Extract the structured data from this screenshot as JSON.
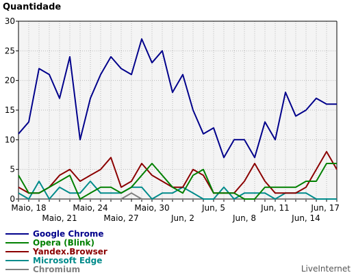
{
  "chart_data": {
    "type": "line",
    "ylabel": "Quantidade",
    "ylim": [
      0,
      30
    ],
    "yticks": [
      0,
      5,
      10,
      15,
      20,
      25,
      30
    ],
    "grid": true,
    "categories": [
      "Maio, 17",
      "Maio, 18",
      "Maio, 19",
      "Maio, 20",
      "Maio, 21",
      "Maio, 22",
      "Maio, 23",
      "Maio, 24",
      "Maio, 25",
      "Maio, 26",
      "Maio, 27",
      "Maio, 28",
      "Maio, 29",
      "Maio, 30",
      "Maio, 31",
      "Jun, 1",
      "Jun, 2",
      "Jun, 3",
      "Jun, 4",
      "Jun, 5",
      "Jun, 6",
      "Jun, 7",
      "Jun, 8",
      "Jun, 9",
      "Jun, 10",
      "Jun, 11",
      "Jun, 12",
      "Jun, 13",
      "Jun, 14",
      "Jun, 15",
      "Jun, 16",
      "Jun, 17"
    ],
    "xtick_labels": [
      {
        "label": "Maio, 18",
        "index": 1,
        "row": 0
      },
      {
        "label": "Maio, 21",
        "index": 4,
        "row": 1
      },
      {
        "label": "Maio, 24",
        "index": 7,
        "row": 0
      },
      {
        "label": "Maio, 27",
        "index": 10,
        "row": 1
      },
      {
        "label": "Maio, 30",
        "index": 13,
        "row": 0
      },
      {
        "label": "Jun, 2",
        "index": 16,
        "row": 1
      },
      {
        "label": "Jun, 5",
        "index": 19,
        "row": 0
      },
      {
        "label": "Jun, 8",
        "index": 22,
        "row": 1
      },
      {
        "label": "Jun, 11",
        "index": 25,
        "row": 0
      },
      {
        "label": "Jun, 14",
        "index": 28,
        "row": 1
      },
      {
        "label": "Jun, 17",
        "index": 31,
        "row": 0
      }
    ],
    "series": [
      {
        "name": "Google Chrome",
        "color": "#00008b",
        "values": [
          11,
          13,
          22,
          21,
          17,
          24,
          10,
          17,
          21,
          24,
          22,
          21,
          27,
          23,
          25,
          18,
          21,
          15,
          11,
          12,
          7,
          10,
          10,
          7,
          13,
          10,
          18,
          14,
          15,
          17,
          16,
          16
        ]
      },
      {
        "name": "Opera (Blink)",
        "color": "#008000",
        "values": [
          4,
          1,
          1,
          2,
          3,
          4,
          0,
          1,
          2,
          2,
          1,
          2,
          4,
          6,
          4,
          2,
          1,
          4,
          5,
          1,
          1,
          1,
          0,
          0,
          2,
          2,
          2,
          2,
          3,
          3,
          6,
          6
        ]
      },
      {
        "name": "Yandex.Browser",
        "color": "#8b0000",
        "values": [
          2,
          1,
          1,
          2,
          4,
          5,
          3,
          4,
          5,
          7,
          2,
          3,
          6,
          4,
          3,
          2,
          2,
          5,
          4,
          1,
          1,
          1,
          3,
          6,
          3,
          1,
          1,
          1,
          2,
          5,
          8,
          5
        ]
      },
      {
        "name": "Microsoft Edge",
        "color": "#008b8b",
        "values": [
          1,
          0,
          3,
          0,
          2,
          1,
          1,
          3,
          1,
          1,
          1,
          2,
          2,
          0,
          1,
          1,
          2,
          1,
          0,
          0,
          2,
          0,
          1,
          1,
          1,
          0,
          1,
          1,
          1,
          0,
          0,
          0
        ]
      },
      {
        "name": "Chromium",
        "color": "#808080",
        "values": [
          0,
          0,
          0,
          0,
          0,
          0,
          0,
          0,
          0,
          0,
          0,
          1,
          0,
          0,
          0,
          0,
          0,
          0,
          0,
          0,
          0,
          0,
          0,
          0,
          0,
          0,
          0,
          0,
          0,
          0,
          0,
          0
        ]
      }
    ]
  },
  "source_label": "LiveInternet"
}
